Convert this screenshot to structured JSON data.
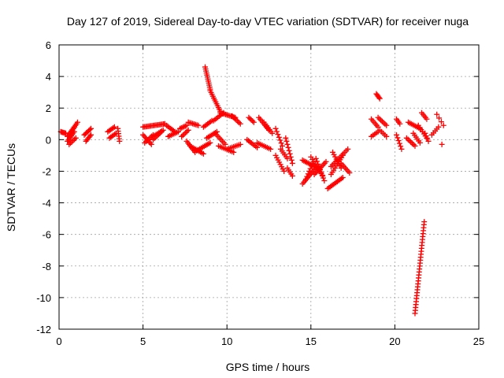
{
  "chart_data": {
    "type": "scatter",
    "title": "Day 127 of 2019, Sidereal Day-to-day VTEC variation (SDTVAR) for receiver nuga",
    "xlabel": "GPS time / hours",
    "ylabel": "SDTVAR / TECUs",
    "xlim": [
      0,
      25
    ],
    "ylim": [
      -12,
      6
    ],
    "xticks": [
      0,
      5,
      10,
      15,
      20,
      25
    ],
    "yticks": [
      -12,
      -10,
      -8,
      -6,
      -4,
      -2,
      0,
      2,
      4,
      6
    ],
    "grid": true,
    "marker": "+",
    "color": "#ff0000",
    "segments": [
      {
        "x0": 0.1,
        "x1": 0.4,
        "y0": 0.5,
        "y1": 0.4,
        "n": 6
      },
      {
        "x0": 0.5,
        "x1": 0.9,
        "y0": 0.2,
        "y1": 0.8,
        "n": 8
      },
      {
        "x0": 0.5,
        "x1": 0.9,
        "y0": -0.1,
        "y1": 0.5,
        "n": 8
      },
      {
        "x0": 0.8,
        "x1": 1.1,
        "y0": 0.6,
        "y1": 1.1,
        "n": 6
      },
      {
        "x0": 0.6,
        "x1": 1.0,
        "y0": -0.3,
        "y1": 0.1,
        "n": 6
      },
      {
        "x0": 1.5,
        "x1": 1.9,
        "y0": 0.3,
        "y1": 0.7,
        "n": 7
      },
      {
        "x0": 1.6,
        "x1": 1.9,
        "y0": -0.1,
        "y1": 0.3,
        "n": 6
      },
      {
        "x0": 2.9,
        "x1": 3.3,
        "y0": 0.5,
        "y1": 0.8,
        "n": 6
      },
      {
        "x0": 3.0,
        "x1": 3.4,
        "y0": 0.1,
        "y1": 0.4,
        "n": 6
      },
      {
        "x0": 3.5,
        "x1": 3.6,
        "y0": 0.7,
        "y1": -0.1,
        "n": 6
      },
      {
        "x0": 5.0,
        "x1": 6.3,
        "y0": 0.8,
        "y1": 1.0,
        "n": 18
      },
      {
        "x0": 5.0,
        "x1": 5.5,
        "y0": 0.3,
        "y1": -0.3,
        "n": 8
      },
      {
        "x0": 5.1,
        "x1": 5.6,
        "y0": -0.2,
        "y1": 0.3,
        "n": 7
      },
      {
        "x0": 5.6,
        "x1": 6.2,
        "y0": 0.2,
        "y1": 0.6,
        "n": 8
      },
      {
        "x0": 5.6,
        "x1": 6.1,
        "y0": 0.0,
        "y1": 0.5,
        "n": 7
      },
      {
        "x0": 6.4,
        "x1": 6.9,
        "y0": 0.9,
        "y1": 0.5,
        "n": 7
      },
      {
        "x0": 6.5,
        "x1": 7.1,
        "y0": 0.2,
        "y1": 0.5,
        "n": 8
      },
      {
        "x0": 7.2,
        "x1": 7.6,
        "y0": 0.7,
        "y1": 0.9,
        "n": 6
      },
      {
        "x0": 7.3,
        "x1": 7.7,
        "y0": 0.2,
        "y1": 0.6,
        "n": 6
      },
      {
        "x0": 7.7,
        "x1": 8.3,
        "y0": 1.1,
        "y1": 0.9,
        "n": 8
      },
      {
        "x0": 7.8,
        "x1": 8.6,
        "y0": -0.4,
        "y1": -0.9,
        "n": 10
      },
      {
        "x0": 7.6,
        "x1": 8.1,
        "y0": -0.1,
        "y1": -0.8,
        "n": 8
      },
      {
        "x0": 8.2,
        "x1": 9.0,
        "y0": -0.7,
        "y1": -0.2,
        "n": 10
      },
      {
        "x0": 8.6,
        "x1": 9.1,
        "y0": 0.8,
        "y1": 1.2,
        "n": 7
      },
      {
        "x0": 8.8,
        "x1": 9.4,
        "y0": 0.1,
        "y1": 0.5,
        "n": 8
      },
      {
        "x0": 8.7,
        "x1": 9.0,
        "y0": 4.6,
        "y1": 3.2,
        "n": 12
      },
      {
        "x0": 9.0,
        "x1": 9.6,
        "y0": 3.1,
        "y1": 1.8,
        "n": 12
      },
      {
        "x0": 9.6,
        "x1": 10.5,
        "y0": 1.7,
        "y1": 1.4,
        "n": 12
      },
      {
        "x0": 9.2,
        "x1": 9.8,
        "y0": 1.2,
        "y1": 1.7,
        "n": 8
      },
      {
        "x0": 9.5,
        "x1": 10.4,
        "y0": -0.4,
        "y1": -0.8,
        "n": 10
      },
      {
        "x0": 9.3,
        "x1": 9.9,
        "y0": 0.4,
        "y1": -0.3,
        "n": 8
      },
      {
        "x0": 10.0,
        "x1": 10.8,
        "y0": -0.6,
        "y1": -0.3,
        "n": 9
      },
      {
        "x0": 10.3,
        "x1": 10.8,
        "y0": 1.5,
        "y1": 1.0,
        "n": 7
      },
      {
        "x0": 11.3,
        "x1": 11.6,
        "y0": 1.4,
        "y1": 1.1,
        "n": 5
      },
      {
        "x0": 11.2,
        "x1": 11.8,
        "y0": 0.0,
        "y1": -0.5,
        "n": 8
      },
      {
        "x0": 11.9,
        "x1": 12.5,
        "y0": 1.4,
        "y1": 0.6,
        "n": 9
      },
      {
        "x0": 11.8,
        "x1": 12.6,
        "y0": -0.2,
        "y1": -0.6,
        "n": 9
      },
      {
        "x0": 12.2,
        "x1": 12.7,
        "y0": 1.1,
        "y1": 0.4,
        "n": 7
      },
      {
        "x0": 12.9,
        "x1": 13.3,
        "y0": 0.7,
        "y1": -0.4,
        "n": 7
      },
      {
        "x0": 12.9,
        "x1": 13.4,
        "y0": -1.0,
        "y1": -2.0,
        "n": 8
      },
      {
        "x0": 13.2,
        "x1": 13.6,
        "y0": -0.6,
        "y1": -1.2,
        "n": 6
      },
      {
        "x0": 13.5,
        "x1": 13.9,
        "y0": 0.1,
        "y1": -1.5,
        "n": 9
      },
      {
        "x0": 13.6,
        "x1": 13.9,
        "y0": -1.8,
        "y1": -2.3,
        "n": 5
      },
      {
        "x0": 14.5,
        "x1": 15.4,
        "y0": -1.3,
        "y1": -1.8,
        "n": 12
      },
      {
        "x0": 14.5,
        "x1": 15.2,
        "y0": -2.8,
        "y1": -1.9,
        "n": 10
      },
      {
        "x0": 14.7,
        "x1": 15.1,
        "y0": -2.5,
        "y1": -1.5,
        "n": 7
      },
      {
        "x0": 15.2,
        "x1": 15.9,
        "y0": -2.2,
        "y1": -1.4,
        "n": 10
      },
      {
        "x0": 15.3,
        "x1": 15.8,
        "y0": -1.2,
        "y1": -2.6,
        "n": 9
      },
      {
        "x0": 15.0,
        "x1": 15.7,
        "y0": -1.1,
        "y1": -2.3,
        "n": 9
      },
      {
        "x0": 16.0,
        "x1": 16.9,
        "y0": -3.1,
        "y1": -2.4,
        "n": 12
      },
      {
        "x0": 16.2,
        "x1": 17.2,
        "y0": -1.7,
        "y1": -0.6,
        "n": 12
      },
      {
        "x0": 16.2,
        "x1": 16.9,
        "y0": -2.2,
        "y1": -1.0,
        "n": 10
      },
      {
        "x0": 16.3,
        "x1": 16.8,
        "y0": -0.8,
        "y1": -1.8,
        "n": 8
      },
      {
        "x0": 16.8,
        "x1": 17.3,
        "y0": -1.5,
        "y1": -2.1,
        "n": 7
      },
      {
        "x0": 18.6,
        "x1": 19.0,
        "y0": 1.3,
        "y1": 0.8,
        "n": 6
      },
      {
        "x0": 18.6,
        "x1": 19.0,
        "y0": 0.2,
        "y1": 0.5,
        "n": 5
      },
      {
        "x0": 18.9,
        "x1": 19.1,
        "y0": 2.9,
        "y1": 2.6,
        "n": 5
      },
      {
        "x0": 19.0,
        "x1": 19.5,
        "y0": 1.4,
        "y1": 0.9,
        "n": 7
      },
      {
        "x0": 19.1,
        "x1": 19.5,
        "y0": 0.6,
        "y1": 0.2,
        "n": 5
      },
      {
        "x0": 20.1,
        "x1": 20.4,
        "y0": 0.3,
        "y1": -0.6,
        "n": 6
      },
      {
        "x0": 20.1,
        "x1": 20.3,
        "y0": 1.3,
        "y1": 1.0,
        "n": 4
      },
      {
        "x0": 20.7,
        "x1": 21.2,
        "y0": 0.1,
        "y1": -0.4,
        "n": 7
      },
      {
        "x0": 20.8,
        "x1": 21.5,
        "y0": 1.1,
        "y1": 0.7,
        "n": 9
      },
      {
        "x0": 21.1,
        "x1": 21.5,
        "y0": 0.4,
        "y1": -0.2,
        "n": 6
      },
      {
        "x0": 21.4,
        "x1": 21.9,
        "y0": 0.9,
        "y1": 0.1,
        "n": 7
      },
      {
        "x0": 21.6,
        "x1": 21.9,
        "y0": 1.7,
        "y1": 1.3,
        "n": 5
      },
      {
        "x0": 21.8,
        "x1": 22.0,
        "y0": 0.4,
        "y1": -0.1,
        "n": 4
      },
      {
        "x0": 22.2,
        "x1": 22.6,
        "y0": 0.3,
        "y1": 0.8,
        "n": 5
      },
      {
        "x0": 22.5,
        "x1": 22.9,
        "y0": 1.6,
        "y1": 0.9,
        "n": 4
      },
      {
        "x0": 22.8,
        "x1": 22.8,
        "y0": -0.3,
        "y1": -0.3,
        "n": 1
      },
      {
        "x0": 21.2,
        "x1": 21.75,
        "y0": -11.0,
        "y1": -5.2,
        "n": 32
      }
    ]
  }
}
